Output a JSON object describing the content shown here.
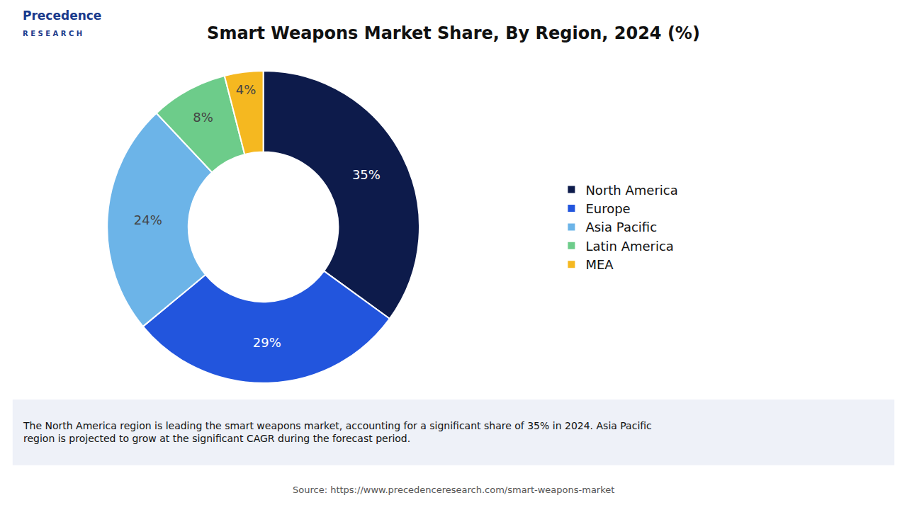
{
  "chart_data": {
    "type": "pie",
    "title": "Smart Weapons Market Share, By Region, 2024 (%)",
    "categories": [
      "North America",
      "Europe",
      "Asia Pacific",
      "Latin America",
      "MEA"
    ],
    "values": [
      35,
      29,
      24,
      8,
      4
    ],
    "value_labels": [
      "35%",
      "29%",
      "24%",
      "8%",
      "4%"
    ],
    "colors": [
      "#0d1b4b",
      "#2255dd",
      "#6cb4e8",
      "#6dcc8a",
      "#f5b820"
    ],
    "data_labels": true,
    "legend": "right",
    "annotations": [
      "Precedence",
      "R E S E A R C H",
      "The North America region is leading the smart weapons market, accounting for a significant share of 35% in 2024. Asia Pacific\nregion is projected to grow at the significant CAGR during the forecast period.",
      "Source: https://www.precedenceresearch.com/smart-weapons-market"
    ]
  }
}
